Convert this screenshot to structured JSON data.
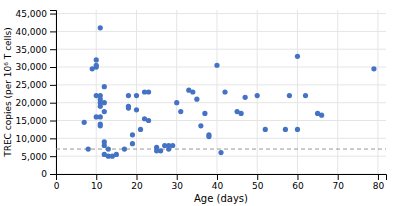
{
  "chart_data": {
    "type": "scatter",
    "x": [
      7,
      8,
      9,
      10,
      10,
      10,
      10,
      10,
      11,
      11,
      11,
      11,
      11,
      11,
      11,
      11,
      12,
      12,
      12,
      12,
      12,
      12,
      13,
      13,
      14,
      15,
      17,
      18,
      18,
      18,
      19,
      19,
      20,
      20,
      21,
      22,
      22,
      23,
      23,
      25,
      25,
      26,
      27,
      28,
      28,
      29,
      30,
      31,
      33,
      34,
      35,
      36,
      37,
      38,
      38,
      40,
      41,
      42,
      45,
      46,
      47,
      50,
      52,
      57,
      58,
      60,
      60,
      62,
      65,
      66,
      79
    ],
    "y": [
      14500,
      7000,
      29500,
      30000,
      30500,
      32000,
      22000,
      16000,
      41000,
      22000,
      21000,
      20000,
      19000,
      16000,
      14000,
      13500,
      24500,
      20000,
      17500,
      9000,
      8000,
      5500,
      5000,
      7000,
      5000,
      5500,
      7000,
      22000,
      19000,
      18500,
      11000,
      8500,
      22000,
      18000,
      12500,
      23000,
      15500,
      23000,
      15000,
      7500,
      6500,
      6500,
      8000,
      8000,
      7000,
      8000,
      20000,
      17500,
      23500,
      23000,
      21000,
      13500,
      17000,
      11000,
      10500,
      30500,
      6000,
      23000,
      17500,
      17000,
      21500,
      22000,
      12500,
      12500,
      22000,
      33000,
      12500,
      22000,
      17000,
      16500,
      29500
    ],
    "color": "#4472C4",
    "xlabel": "Age (days)",
    "ylabel": "TREC copies (per 10⁶ T cells)",
    "xlim": [
      0,
      82
    ],
    "ylim": [
      0,
      46000
    ],
    "xticks": [
      0,
      10,
      20,
      30,
      40,
      50,
      60,
      70,
      80
    ],
    "yticks": [
      0,
      {
        "value": 5000,
        "label": "5,000"
      },
      {
        "value": 10000,
        "label": "10,000"
      },
      {
        "value": 15000,
        "label": "15,000"
      },
      {
        "value": 20000,
        "label": "20,000"
      },
      {
        "value": 25000,
        "label": "25,000"
      },
      {
        "value": 30000,
        "label": "30,000"
      },
      {
        "value": 35000,
        "label": "35,000"
      },
      {
        "value": 40000,
        "label": "40,000"
      },
      {
        "value": 45000,
        "label": "45,000"
      }
    ],
    "reference_line": {
      "value": 7000,
      "line_style": "dashed",
      "color": "#999999"
    },
    "grid": true
  }
}
